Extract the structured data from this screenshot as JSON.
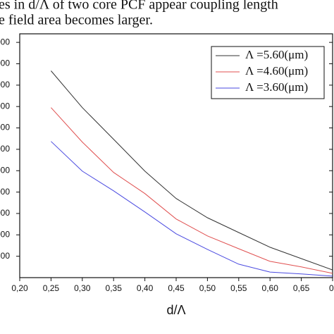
{
  "caption_lines": [
    "es in d/Λ of two core PCF appear coupling length",
    "e field area becomes larger."
  ],
  "chart_data": {
    "type": "line",
    "x_label": "d/Λ",
    "x": [
      0.25,
      0.3,
      0.35,
      0.4,
      0.45,
      0.5,
      0.55,
      0.6,
      0.65,
      0.7
    ],
    "xlim": [
      0.2,
      0.7
    ],
    "xticks": [
      {
        "value": 0.2,
        "label": "0,20"
      },
      {
        "value": 0.25,
        "label": "0,25"
      },
      {
        "value": 0.3,
        "label": "0,30"
      },
      {
        "value": 0.35,
        "label": "0,35"
      },
      {
        "value": 0.4,
        "label": "0,40"
      },
      {
        "value": 0.45,
        "label": "0,45"
      },
      {
        "value": 0.5,
        "label": "0,50"
      },
      {
        "value": 0.55,
        "label": "0,55"
      },
      {
        "value": 0.6,
        "label": "0,60"
      },
      {
        "value": 0.65,
        "label": "0,65"
      },
      {
        "value": 0.7,
        "label": "0,"
      }
    ],
    "ylim": [
      0,
      11.4
    ],
    "yticks": [
      {
        "value": 1,
        "label": "00"
      },
      {
        "value": 2,
        "label": "000"
      },
      {
        "value": 3,
        "label": "000"
      },
      {
        "value": 4,
        "label": "000"
      },
      {
        "value": 5,
        "label": "000"
      },
      {
        "value": 6,
        "label": "000"
      },
      {
        "value": 7,
        "label": "000"
      },
      {
        "value": 8,
        "label": "000"
      },
      {
        "value": 9,
        "label": "000"
      },
      {
        "value": 10,
        "label": "000"
      },
      {
        "value": 11,
        "label": "000"
      }
    ],
    "legend": "upper right",
    "series": [
      {
        "name": "Λ =5.60(μm)",
        "color": "#333333",
        "values": [
          9.67,
          7.95,
          6.47,
          4.98,
          3.7,
          2.8,
          2.11,
          1.42,
          0.89,
          0.36
        ]
      },
      {
        "name": "Λ =4.60(μm)",
        "color": "#e05050",
        "values": [
          7.95,
          6.34,
          4.92,
          3.93,
          2.74,
          1.95,
          1.35,
          0.76,
          0.5,
          0.2
        ]
      },
      {
        "name": "Λ =3.60(μm)",
        "color": "#4a4ae0",
        "values": [
          6.37,
          4.98,
          4.06,
          3.07,
          2.05,
          1.32,
          0.63,
          0.26,
          0.17,
          0.07
        ]
      }
    ]
  }
}
